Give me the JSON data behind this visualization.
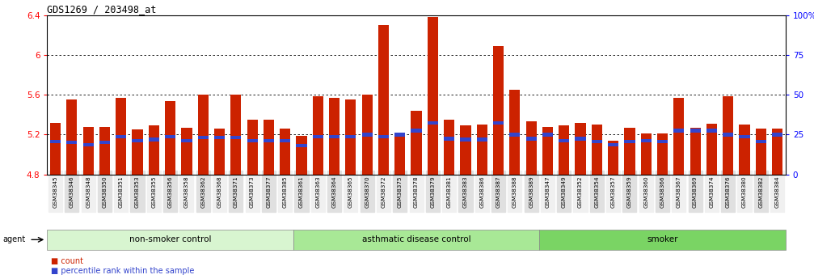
{
  "title": "GDS1269 / 203498_at",
  "ylim_left": [
    4.8,
    6.4
  ],
  "ylim_right": [
    0,
    100
  ],
  "yticks_left": [
    4.8,
    5.2,
    5.6,
    6.0,
    6.4
  ],
  "ytick_labels_left": [
    "4.8",
    "5.2",
    "5.6",
    "6",
    "6.4"
  ],
  "yticks_right": [
    0,
    25,
    50,
    75,
    100
  ],
  "ytick_labels_right": [
    "0",
    "25",
    "50",
    "75",
    "100%"
  ],
  "bar_color": "#cc2200",
  "blue_color": "#3344cc",
  "samples": [
    "GSM38345",
    "GSM38346",
    "GSM38348",
    "GSM38350",
    "GSM38351",
    "GSM38353",
    "GSM38355",
    "GSM38356",
    "GSM38358",
    "GSM38362",
    "GSM38368",
    "GSM38371",
    "GSM38373",
    "GSM38377",
    "GSM38385",
    "GSM38361",
    "GSM38363",
    "GSM38364",
    "GSM38365",
    "GSM38370",
    "GSM38372",
    "GSM38375",
    "GSM38378",
    "GSM38379",
    "GSM38381",
    "GSM38383",
    "GSM38386",
    "GSM38387",
    "GSM38388",
    "GSM38389",
    "GSM38347",
    "GSM38349",
    "GSM38352",
    "GSM38354",
    "GSM38357",
    "GSM38359",
    "GSM38360",
    "GSM38366",
    "GSM38367",
    "GSM38369",
    "GSM38374",
    "GSM38376",
    "GSM38380",
    "GSM38382",
    "GSM38384"
  ],
  "bar_heights": [
    5.32,
    5.55,
    5.28,
    5.28,
    5.57,
    5.25,
    5.29,
    5.54,
    5.27,
    5.6,
    5.26,
    5.6,
    5.35,
    5.35,
    5.26,
    5.19,
    5.59,
    5.57,
    5.55,
    5.6,
    6.3,
    5.19,
    5.44,
    6.38,
    5.35,
    5.29,
    5.3,
    6.09,
    5.65,
    5.33,
    5.28,
    5.29,
    5.32,
    5.3,
    5.14,
    5.27,
    5.21,
    5.21,
    5.57,
    5.27,
    5.31,
    5.59,
    5.3,
    5.26,
    5.26
  ],
  "blue_heights": [
    5.13,
    5.12,
    5.1,
    5.12,
    5.18,
    5.14,
    5.15,
    5.18,
    5.14,
    5.17,
    5.17,
    5.17,
    5.14,
    5.14,
    5.14,
    5.09,
    5.18,
    5.18,
    5.18,
    5.2,
    5.18,
    5.2,
    5.24,
    5.32,
    5.16,
    5.15,
    5.15,
    5.32,
    5.2,
    5.16,
    5.2,
    5.14,
    5.16,
    5.13,
    5.1,
    5.13,
    5.14,
    5.13,
    5.24,
    5.24,
    5.24,
    5.2,
    5.18,
    5.13,
    5.2
  ],
  "groups": [
    {
      "label": "non-smoker control",
      "start": 0,
      "end": 15,
      "color": "#d8f5d0"
    },
    {
      "label": "asthmatic disease control",
      "start": 15,
      "end": 30,
      "color": "#a8e896"
    },
    {
      "label": "smoker",
      "start": 30,
      "end": 45,
      "color": "#7ad464"
    }
  ],
  "agent_label": "agent",
  "legend_items": [
    {
      "label": "count",
      "color": "#cc2200"
    },
    {
      "label": "percentile rank within the sample",
      "color": "#3344cc"
    }
  ]
}
